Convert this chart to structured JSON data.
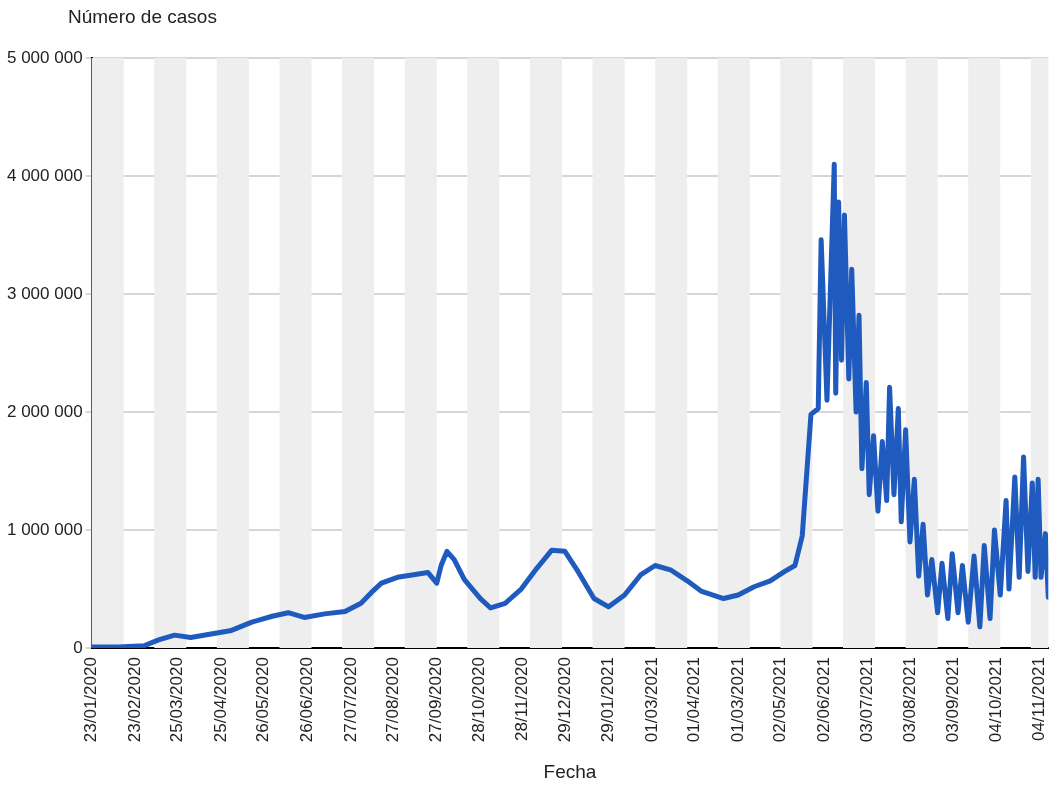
{
  "chart_data": {
    "type": "line",
    "ylabel": "Número de casos",
    "xlabel": "Fecha",
    "grid": "y",
    "legend": false,
    "marker": "none",
    "line_style": "solid",
    "xlim": [
      "2020-01-23",
      "2021-11-10"
    ],
    "xticks": [
      {
        "value": "2020-01-23",
        "label": "23/01/2020"
      },
      {
        "value": "2020-02-22",
        "label": "23/02/2020"
      },
      {
        "value": "2020-03-22",
        "label": "25/03/2020"
      },
      {
        "value": "2020-04-21",
        "label": "25/04/2020"
      },
      {
        "value": "2020-05-20",
        "label": "26/05/2020"
      },
      {
        "value": "2020-06-19",
        "label": "26/06/2020"
      },
      {
        "value": "2020-07-19",
        "label": "27/07/2020"
      },
      {
        "value": "2020-08-17",
        "label": "27/08/2020"
      },
      {
        "value": "2020-09-16",
        "label": "27/09/2020"
      },
      {
        "value": "2020-10-15",
        "label": "28/10/2020"
      },
      {
        "value": "2020-11-14",
        "label": "28/11/2020"
      },
      {
        "value": "2020-12-13",
        "label": "29/12/2020"
      },
      {
        "value": "2021-01-12",
        "label": "29/01/2021"
      },
      {
        "value": "2021-02-11",
        "label": "01/03/2021"
      },
      {
        "value": "2021-03-12",
        "label": "01/04/2021"
      },
      {
        "value": "2021-04-11",
        "label": "01/03/2021"
      },
      {
        "value": "2021-05-10",
        "label": "02/05/2021"
      },
      {
        "value": "2021-06-09",
        "label": "02/06/2021"
      },
      {
        "value": "2021-07-09",
        "label": "03/07/2021"
      },
      {
        "value": "2021-08-07",
        "label": "03/08/2021"
      },
      {
        "value": "2021-09-06",
        "label": "03/09/2021"
      },
      {
        "value": "2021-10-05",
        "label": "04/10/2021"
      },
      {
        "value": "2021-11-04",
        "label": "04/11/2021"
      }
    ],
    "ylim": [
      0,
      5000000
    ],
    "bands": [
      {
        "axis": "x",
        "from": "2020-01-23",
        "to": "2020-02-14",
        "color": "#eeeeee"
      },
      {
        "axis": "x",
        "from": "2020-03-06",
        "to": "2020-03-28",
        "color": "#eeeeee"
      },
      {
        "axis": "x",
        "from": "2020-04-18",
        "to": "2020-05-10",
        "color": "#eeeeee"
      },
      {
        "axis": "x",
        "from": "2020-05-31",
        "to": "2020-06-22",
        "color": "#eeeeee"
      },
      {
        "axis": "x",
        "from": "2020-07-13",
        "to": "2020-08-04",
        "color": "#eeeeee"
      },
      {
        "axis": "x",
        "from": "2020-08-25",
        "to": "2020-09-16",
        "color": "#eeeeee"
      },
      {
        "axis": "x",
        "from": "2020-10-07",
        "to": "2020-10-29",
        "color": "#eeeeee"
      },
      {
        "axis": "x",
        "from": "2020-11-19",
        "to": "2020-12-11",
        "color": "#eeeeee"
      },
      {
        "axis": "x",
        "from": "2021-01-01",
        "to": "2021-01-23",
        "color": "#eeeeee"
      },
      {
        "axis": "x",
        "from": "2021-02-13",
        "to": "2021-03-07",
        "color": "#eeeeee"
      },
      {
        "axis": "x",
        "from": "2021-03-28",
        "to": "2021-04-19",
        "color": "#eeeeee"
      },
      {
        "axis": "x",
        "from": "2021-05-10",
        "to": "2021-06-01",
        "color": "#eeeeee"
      },
      {
        "axis": "x",
        "from": "2021-06-22",
        "to": "2021-07-14",
        "color": "#eeeeee"
      },
      {
        "axis": "x",
        "from": "2021-08-04",
        "to": "2021-08-26",
        "color": "#eeeeee"
      },
      {
        "axis": "x",
        "from": "2021-09-16",
        "to": "2021-10-08",
        "color": "#eeeeee"
      },
      {
        "axis": "x",
        "from": "2021-10-29",
        "to": "2021-11-10",
        "color": "#eeeeee"
      }
    ],
    "yticks": [
      0,
      {
        "value": 1000000,
        "label": "1 000 000"
      },
      {
        "value": 2000000,
        "label": "2 000 000"
      },
      {
        "value": 3000000,
        "label": "3 000 000"
      },
      {
        "value": 4000000,
        "label": "4 000 000"
      },
      {
        "value": 5000000,
        "label": "5 000 000"
      }
    ],
    "x": [
      "2020-01-23",
      "2020-02-10",
      "2020-02-28",
      "2020-03-09",
      "2020-03-20",
      "2020-03-31",
      "2020-04-14",
      "2020-04-28",
      "2020-05-12",
      "2020-05-26",
      "2020-06-06",
      "2020-06-17",
      "2020-07-01",
      "2020-07-15",
      "2020-07-26",
      "2020-08-02",
      "2020-08-09",
      "2020-08-20",
      "2020-08-30",
      "2020-09-10",
      "2020-09-16",
      "2020-09-19",
      "2020-09-23",
      "2020-09-28",
      "2020-10-05",
      "2020-10-16",
      "2020-10-23",
      "2020-11-02",
      "2020-11-13",
      "2020-11-24",
      "2020-12-04",
      "2020-12-13",
      "2020-12-22",
      "2021-01-02",
      "2021-01-12",
      "2021-01-23",
      "2021-02-03",
      "2021-02-13",
      "2021-02-24",
      "2021-03-07",
      "2021-03-17",
      "2021-04-01",
      "2021-04-11",
      "2021-04-22",
      "2021-05-03",
      "2021-05-13",
      "2021-05-20",
      "2021-05-25",
      "2021-05-31",
      "2021-06-05",
      "2021-06-07",
      "2021-06-11",
      "2021-06-16",
      "2021-06-17",
      "2021-06-19",
      "2021-06-21",
      "2021-06-23",
      "2021-06-26",
      "2021-06-28",
      "2021-07-01",
      "2021-07-03",
      "2021-07-05",
      "2021-07-08",
      "2021-07-10",
      "2021-07-13",
      "2021-07-16",
      "2021-07-19",
      "2021-07-22",
      "2021-07-24",
      "2021-07-27",
      "2021-07-30",
      "2021-08-01",
      "2021-08-04",
      "2021-08-07",
      "2021-08-10",
      "2021-08-13",
      "2021-08-16",
      "2021-08-19",
      "2021-08-22",
      "2021-08-26",
      "2021-08-29",
      "2021-09-02",
      "2021-09-05",
      "2021-09-09",
      "2021-09-12",
      "2021-09-16",
      "2021-09-20",
      "2021-09-24",
      "2021-09-27",
      "2021-10-01",
      "2021-10-04",
      "2021-10-08",
      "2021-10-12",
      "2021-10-14",
      "2021-10-18",
      "2021-10-21",
      "2021-10-24",
      "2021-10-27",
      "2021-10-30",
      "2021-11-01",
      "2021-11-03",
      "2021-11-05",
      "2021-11-08",
      "2021-11-10"
    ],
    "series": [
      {
        "color": "#1f5bbf",
        "values": [
          10000,
          10000,
          20000,
          70000,
          110000,
          90000,
          120000,
          150000,
          220000,
          270000,
          300000,
          260000,
          290000,
          310000,
          380000,
          470000,
          550000,
          600000,
          620000,
          640000,
          550000,
          700000,
          820000,
          750000,
          580000,
          420000,
          340000,
          380000,
          500000,
          680000,
          830000,
          820000,
          650000,
          420000,
          350000,
          450000,
          620000,
          700000,
          660000,
          570000,
          480000,
          420000,
          450000,
          520000,
          570000,
          650000,
          700000,
          950000,
          1980000,
          2030000,
          3460000,
          2100000,
          4100000,
          2160000,
          3780000,
          2440000,
          3670000,
          2280000,
          3210000,
          2000000,
          2820000,
          1520000,
          2250000,
          1300000,
          1800000,
          1160000,
          1750000,
          1250000,
          2210000,
          1300000,
          2030000,
          1070000,
          1850000,
          900000,
          1430000,
          610000,
          1050000,
          450000,
          750000,
          300000,
          720000,
          250000,
          800000,
          300000,
          700000,
          220000,
          780000,
          180000,
          870000,
          250000,
          1000000,
          450000,
          1250000,
          500000,
          1450000,
          600000,
          1620000,
          650000,
          1400000,
          600000,
          1430000,
          600000,
          970000,
          430000
        ]
      }
    ]
  }
}
